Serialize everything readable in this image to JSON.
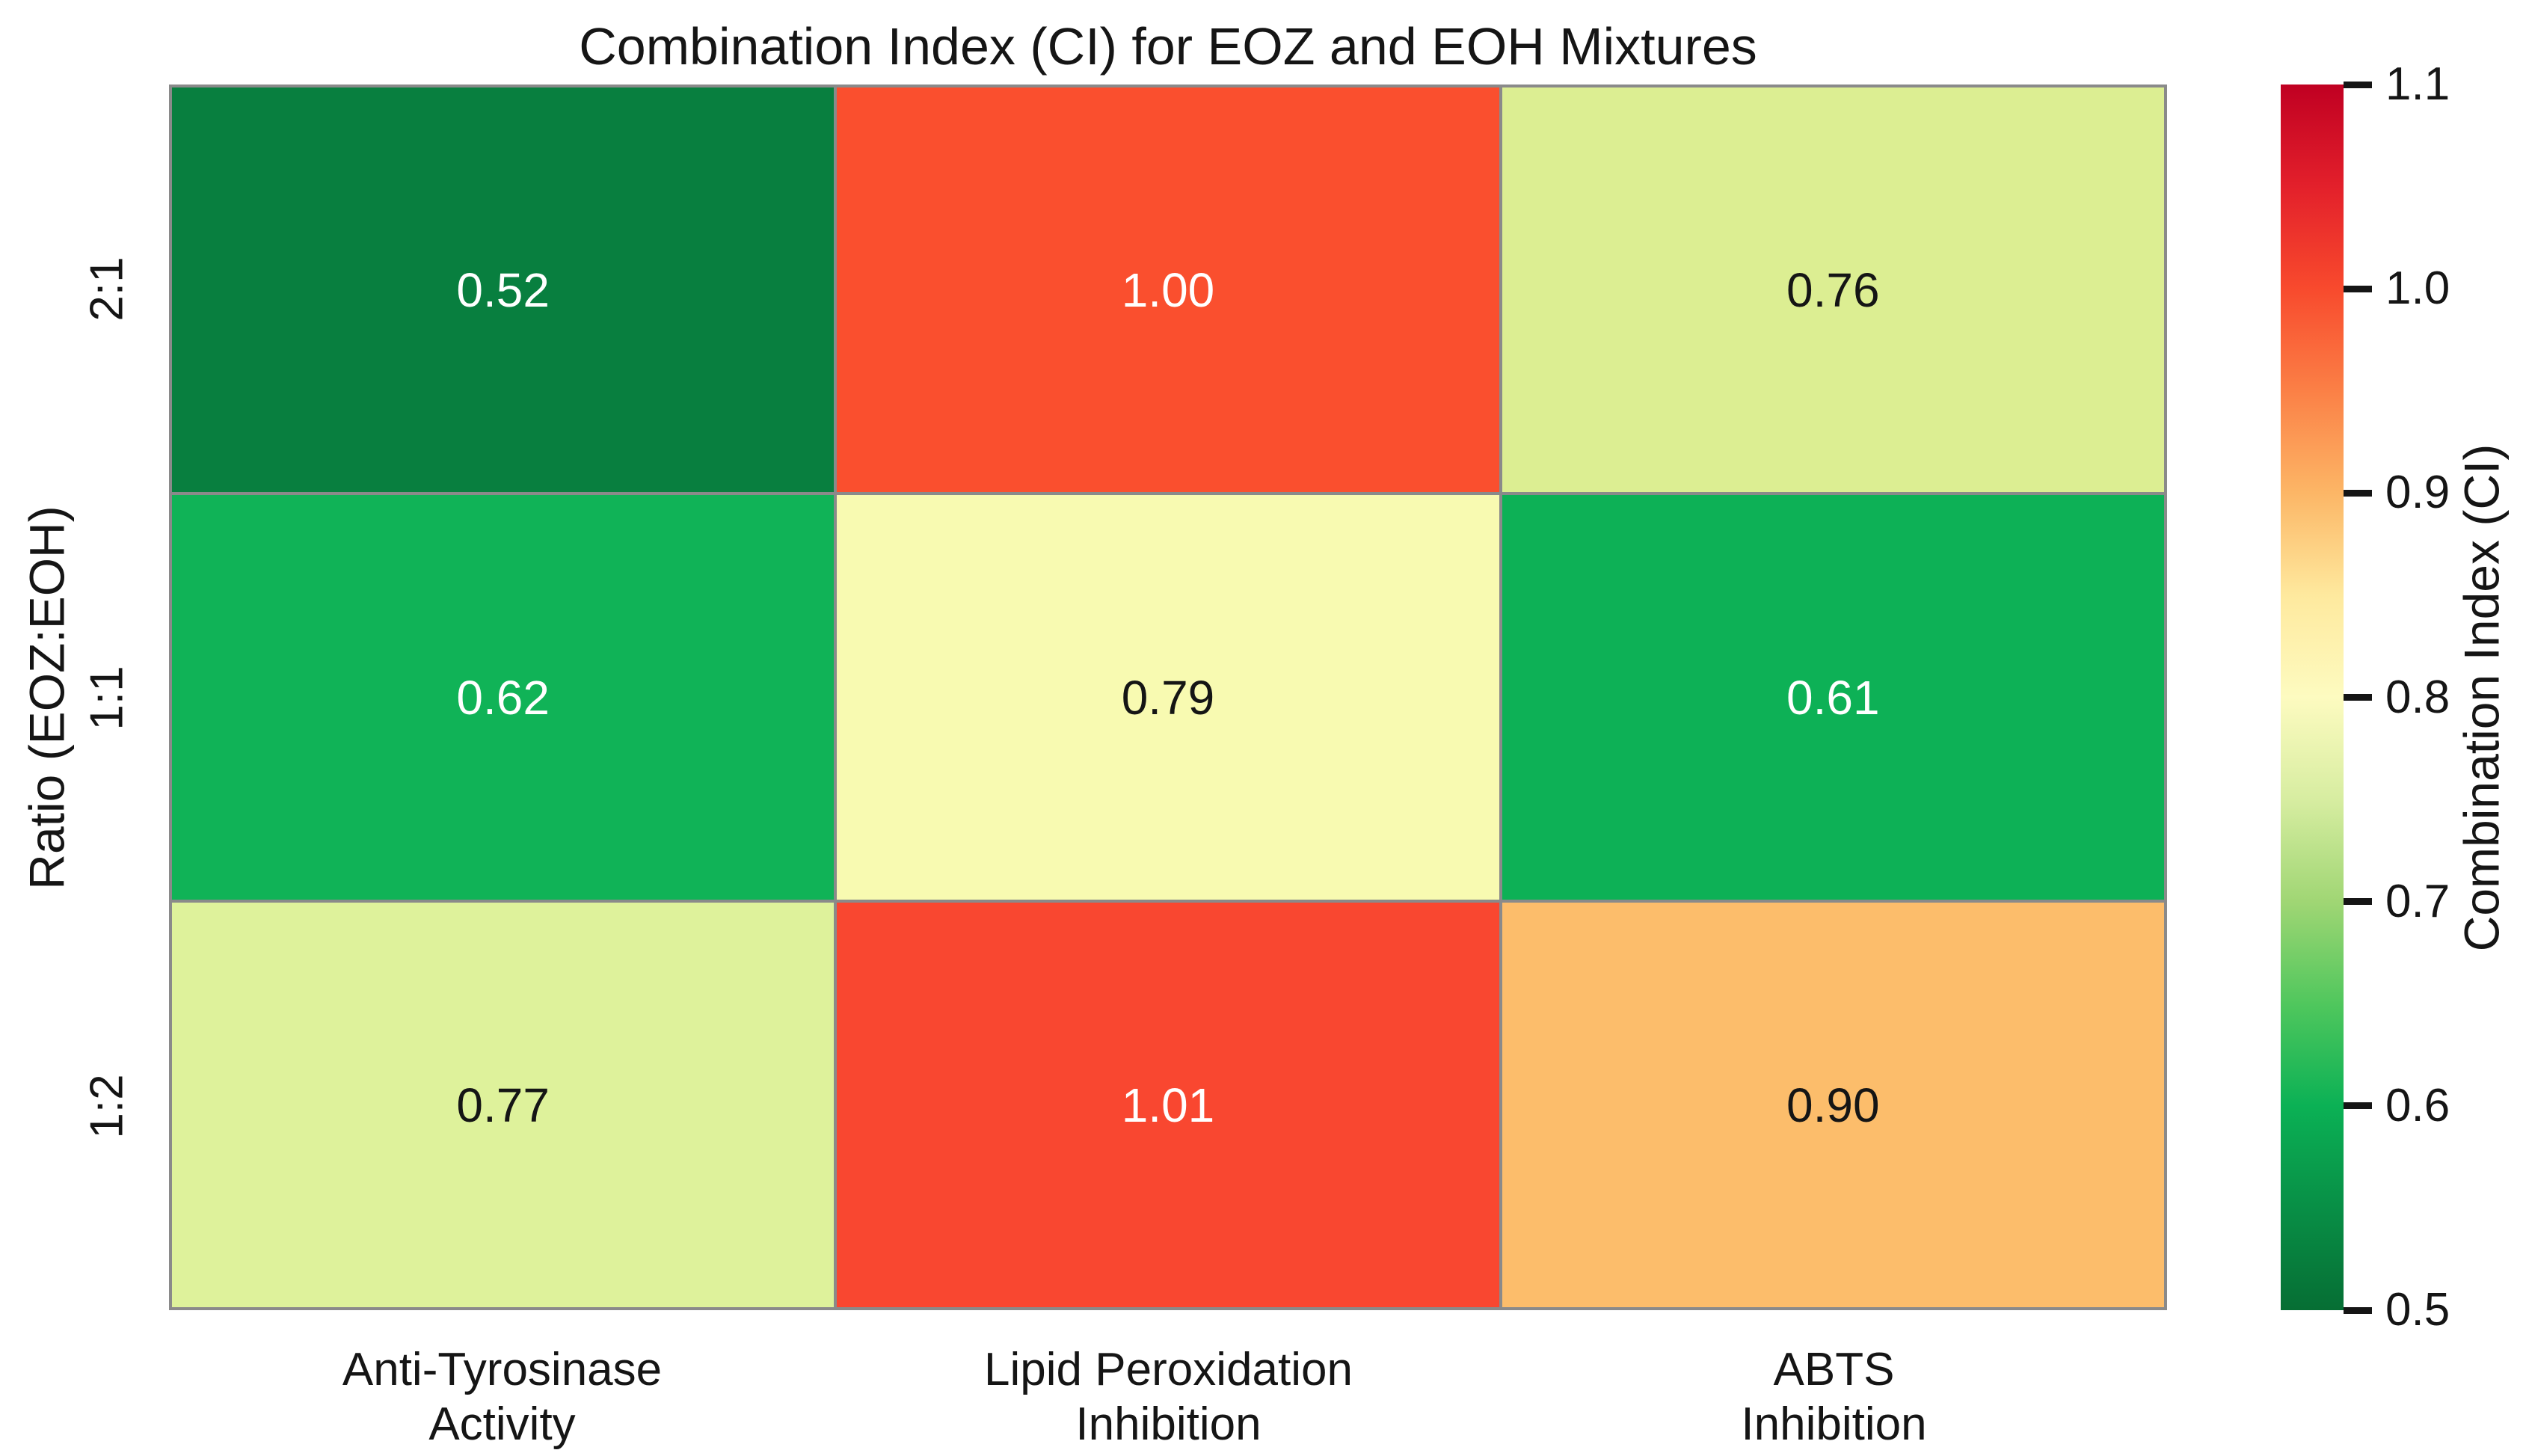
{
  "title": "Combination Index (CI) for EOZ and EOH Mixtures",
  "y_axis": {
    "label": "Ratio (EOZ:EOH)",
    "ticks": [
      "2:1",
      "1:1",
      "1:2"
    ]
  },
  "x_axis": {
    "ticks": [
      {
        "line1": "Anti-Tyrosinase",
        "line2": "Activity"
      },
      {
        "line1": "Lipid Peroxidation",
        "line2": "Inhibition"
      },
      {
        "line1": "ABTS",
        "line2": "Inhibition"
      }
    ]
  },
  "colorbar": {
    "label": "Combination Index (CI)",
    "ticks": [
      "1.1",
      "1.0",
      "0.9",
      "0.8",
      "0.7",
      "0.6",
      "0.5"
    ],
    "gradient_bottom_to_top": [
      "#066e34",
      "#088f46",
      "#0bb155",
      "#50c75d",
      "#a0d674",
      "#d7eda1",
      "#fdfbc0",
      "#fee99e",
      "#fcb666",
      "#fb8046",
      "#f84a2d",
      "#e3202b",
      "#c00022"
    ]
  },
  "chart_data": {
    "type": "heatmap",
    "title": "Combination Index (CI) for EOZ and EOH Mixtures",
    "x_categories": [
      "Anti-Tyrosinase Activity",
      "Lipid Peroxidation Inhibition",
      "ABTS Inhibition"
    ],
    "y_categories": [
      "2:1",
      "1:1",
      "1:2"
    ],
    "xlabel": "",
    "ylabel": "Ratio (EOZ:EOH)",
    "values": [
      [
        0.52,
        1.0,
        0.76
      ],
      [
        0.62,
        0.79,
        0.61
      ],
      [
        0.77,
        1.01,
        0.9
      ]
    ],
    "colormap": "green-yellow-red (RdYlGn reversed)",
    "vmin": 0.5,
    "vmax": 1.1,
    "colorbar_label": "Combination Index (CI)",
    "cells": [
      {
        "row": "2:1",
        "col": "Anti-Tyrosinase Activity",
        "value": 0.52,
        "label": "0.52",
        "bg": "#087f3f",
        "fg": "#ffffff"
      },
      {
        "row": "2:1",
        "col": "Lipid Peroxidation Inhibition",
        "value": 1.0,
        "label": "1.00",
        "bg": "#fa4f2e",
        "fg": "#ffffff"
      },
      {
        "row": "2:1",
        "col": "ABTS Inhibition",
        "value": 0.76,
        "label": "0.76",
        "bg": "#dcee92",
        "fg": "#151515"
      },
      {
        "row": "1:1",
        "col": "Anti-Tyrosinase Activity",
        "value": 0.62,
        "label": "0.62",
        "bg": "#10b357",
        "fg": "#ffffff"
      },
      {
        "row": "1:1",
        "col": "Lipid Peroxidation Inhibition",
        "value": 0.79,
        "label": "0.79",
        "bg": "#f8fab1",
        "fg": "#151515"
      },
      {
        "row": "1:1",
        "col": "ABTS Inhibition",
        "value": 0.61,
        "label": "0.61",
        "bg": "#0db156",
        "fg": "#ffffff"
      },
      {
        "row": "1:2",
        "col": "Anti-Tyrosinase Activity",
        "value": 0.77,
        "label": "0.77",
        "bg": "#def29b",
        "fg": "#151515"
      },
      {
        "row": "1:2",
        "col": "Lipid Peroxidation Inhibition",
        "value": 1.01,
        "label": "1.01",
        "bg": "#f94730",
        "fg": "#ffffff"
      },
      {
        "row": "1:2",
        "col": "ABTS Inhibition",
        "value": 0.9,
        "label": "0.90",
        "bg": "#fcbd6b",
        "fg": "#151515"
      }
    ]
  }
}
